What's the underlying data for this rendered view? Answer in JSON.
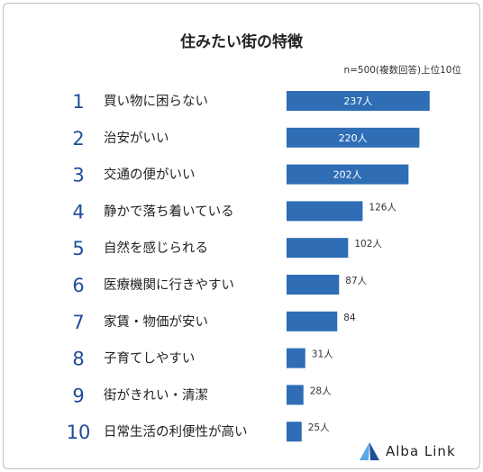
{
  "chart_data": {
    "type": "bar",
    "orientation": "horizontal",
    "title": "住みたい街の特徴",
    "note": "n=500(複数回答)上位10位",
    "bar_color": "#2f6db5",
    "rank_color": "#1f4e99",
    "xlim": [
      0,
      250
    ],
    "ranks": [
      "1",
      "2",
      "3",
      "4",
      "5",
      "6",
      "7",
      "8",
      "9",
      "10"
    ],
    "categories": [
      "買い物に困らない",
      "治安がいい",
      "交通の便がいい",
      "静かで落ち着いている",
      "自然を感じられる",
      "医療機関に行きやすい",
      "家賃・物価が安い",
      "子育てしやすい",
      "街がきれい・清潔",
      "日常生活の利便性が高い"
    ],
    "values": [
      237,
      220,
      202,
      126,
      102,
      87,
      84,
      31,
      28,
      25
    ],
    "value_labels": [
      "237人",
      "220人",
      "202人",
      "126人",
      "102人",
      "87人",
      "84",
      "31人",
      "28人",
      "25人"
    ]
  },
  "logo": {
    "text": "Alba Link"
  }
}
